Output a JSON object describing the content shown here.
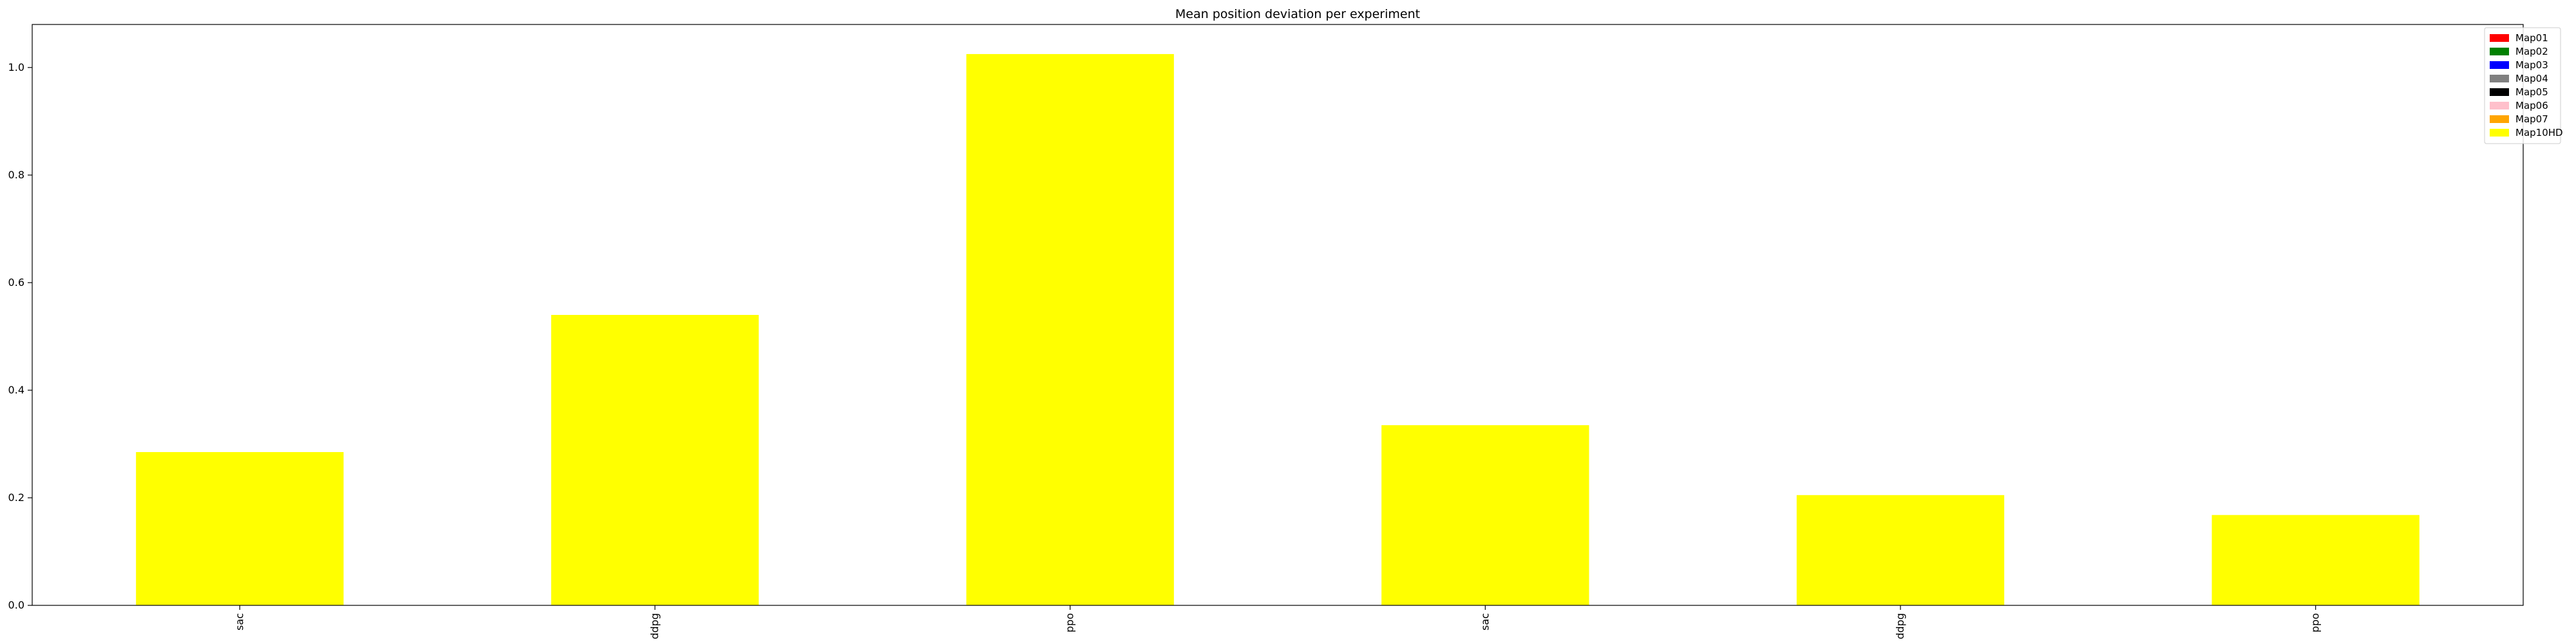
{
  "chart_data": {
    "type": "bar",
    "title": "Mean position deviation per experiment",
    "xlabel": "",
    "ylabel": "",
    "categories": [
      "sac",
      "ddpg",
      "ppo",
      "sac",
      "ddpg",
      "ppo"
    ],
    "ylim": [
      0,
      1.08
    ],
    "yticks": [
      "0.0",
      "0.2",
      "0.4",
      "0.6",
      "0.8",
      "1.0"
    ],
    "grid": false,
    "legend_position": "top-right",
    "series": [
      {
        "name": "Map01",
        "color": "#ff0000",
        "values": [
          0,
          0,
          0,
          0,
          0,
          0
        ]
      },
      {
        "name": "Map02",
        "color": "#008000",
        "values": [
          0,
          0,
          0,
          0,
          0,
          0
        ]
      },
      {
        "name": "Map03",
        "color": "#0000ff",
        "values": [
          0,
          0,
          0,
          0,
          0,
          0
        ]
      },
      {
        "name": "Map04",
        "color": "#808080",
        "values": [
          0,
          0,
          0,
          0,
          0,
          0
        ]
      },
      {
        "name": "Map05",
        "color": "#000000",
        "values": [
          0,
          0,
          0,
          0,
          0,
          0
        ]
      },
      {
        "name": "Map06",
        "color": "#ffc0cb",
        "values": [
          0,
          0,
          0,
          0,
          0,
          0
        ]
      },
      {
        "name": "Map07",
        "color": "#ffa500",
        "values": [
          0,
          0,
          0,
          0,
          0,
          0
        ]
      },
      {
        "name": "Map10HD",
        "color": "#ffff00",
        "values": [
          0.285,
          0.54,
          1.025,
          0.335,
          0.205,
          0.168
        ]
      }
    ]
  }
}
